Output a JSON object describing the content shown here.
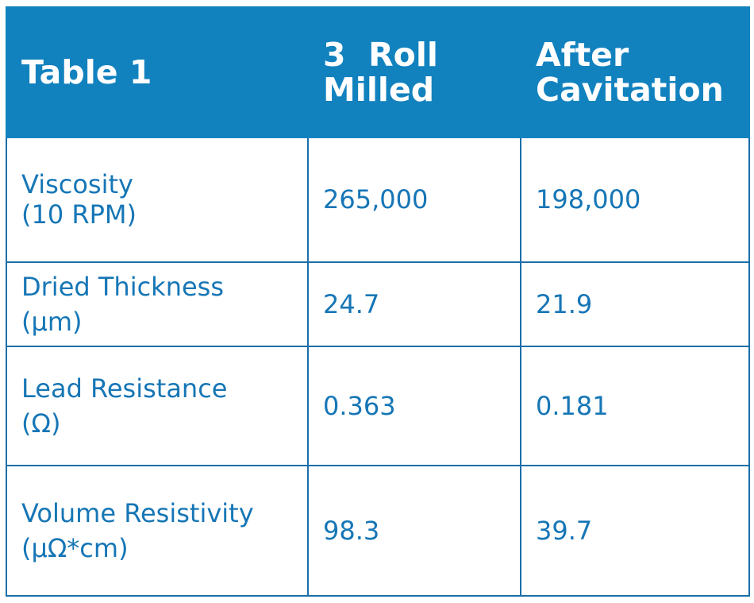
{
  "table": {
    "header": {
      "col1": "Table 1",
      "col2_line1": "3  Roll",
      "col2_line2": "Milled",
      "col3_line1": "After",
      "col3_line2": "Cavitation"
    },
    "rows": [
      {
        "label_line1": "Viscosity",
        "label_line2": "(10 RPM)",
        "roll_milled": "265,000",
        "after_cavitation": "198,000"
      },
      {
        "label_line1": "Dried Thickness",
        "label_line2": "(µm)",
        "roll_milled": "24.7",
        "after_cavitation": "21.9"
      },
      {
        "label_line1": "Lead Resistance",
        "label_line2": "(Ω)",
        "roll_milled": "0.363",
        "after_cavitation": "0.181"
      },
      {
        "label_line1": "Volume Resistivity",
        "label_line2": "(µΩ*cm)",
        "roll_milled": "98.3",
        "after_cavitation": "39.7"
      }
    ],
    "colors": {
      "header_background": "#1282bf",
      "header_text": "#ffffff",
      "body_text": "#1676b6",
      "border": "#1b6fa8"
    }
  }
}
